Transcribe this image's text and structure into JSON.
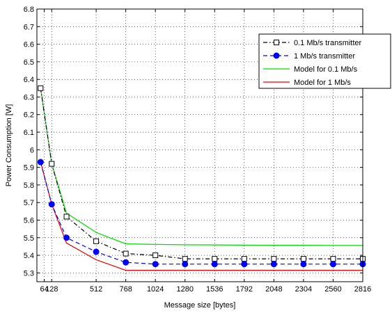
{
  "chart_data": {
    "type": "line",
    "xlabel": "Message size [bytes]",
    "ylabel": "Power Consumption [W]",
    "xlim": [
      0,
      2816
    ],
    "ylim": [
      5.25,
      6.8
    ],
    "grid": true,
    "legend_position": "top-right",
    "x_ticks": [
      64,
      128,
      512,
      768,
      1024,
      1280,
      1536,
      1792,
      2048,
      2304,
      2560,
      2816
    ],
    "x_tick_labels": [
      "64",
      "128",
      "512",
      "768",
      "1024",
      "1280",
      "1536",
      "1792",
      "2048",
      "2304",
      "2560",
      "2816"
    ],
    "y_ticks": [
      5.3,
      5.4,
      5.5,
      5.6,
      5.7,
      5.8,
      5.9,
      6.0,
      6.1,
      6.2,
      6.3,
      6.4,
      6.5,
      6.6,
      6.7,
      6.8
    ],
    "y_tick_labels": [
      "5.3",
      "5.4",
      "5.5",
      "5.6",
      "5.7",
      "5.8",
      "5.9",
      "6",
      "6.1",
      "6.2",
      "6.3",
      "6.4",
      "6.5",
      "6.6",
      "6.7",
      "6.8"
    ],
    "series": [
      {
        "name": "0.1 Mb/s transmitter",
        "color": "#000000",
        "line": "dashdot",
        "marker": "square-open",
        "x": [
          32,
          128,
          256,
          512,
          768,
          1024,
          1280,
          1536,
          1792,
          2048,
          2304,
          2560,
          2816
        ],
        "y": [
          6.35,
          5.92,
          5.62,
          5.48,
          5.41,
          5.4,
          5.38,
          5.38,
          5.38,
          5.38,
          5.38,
          5.38,
          5.38
        ]
      },
      {
        "name": "1 Mb/s transmitter",
        "color": "#0000ff",
        "line": "dashed",
        "marker": "circle-filled",
        "x": [
          32,
          128,
          256,
          512,
          768,
          1024,
          1280,
          1536,
          1792,
          2048,
          2304,
          2560,
          2816
        ],
        "y": [
          5.93,
          5.69,
          5.5,
          5.42,
          5.36,
          5.35,
          5.35,
          5.35,
          5.35,
          5.35,
          5.35,
          5.35,
          5.35
        ]
      },
      {
        "name": "Model for 0.1 Mb/s",
        "color": "#00dd00",
        "line": "solid",
        "marker": "none",
        "x": [
          32,
          128,
          256,
          512,
          768,
          1024,
          1280,
          1536,
          1792,
          2048,
          2304,
          2560,
          2816
        ],
        "y": [
          6.35,
          5.92,
          5.64,
          5.53,
          5.465,
          5.462,
          5.46,
          5.459,
          5.458,
          5.457,
          5.457,
          5.456,
          5.456
        ]
      },
      {
        "name": "Model for 1 Mb/s",
        "color": "#ee0000",
        "line": "solid",
        "marker": "none",
        "x": [
          32,
          128,
          256,
          512,
          768,
          1024,
          1280,
          1536,
          1792,
          2048,
          2304,
          2560,
          2816
        ],
        "y": [
          5.93,
          5.69,
          5.47,
          5.375,
          5.315,
          5.315,
          5.315,
          5.315,
          5.315,
          5.315,
          5.315,
          5.315,
          5.315
        ]
      }
    ]
  }
}
